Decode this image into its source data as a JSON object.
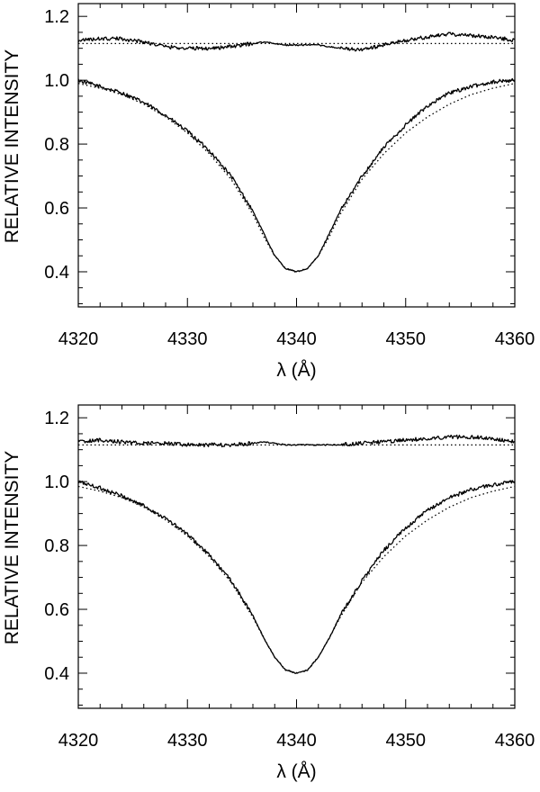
{
  "chart_data": [
    {
      "type": "line",
      "title": "",
      "xlabel": "λ (Å)",
      "ylabel": "RELATIVE INTENSITY",
      "xlim": [
        4320,
        4360
      ],
      "ylim": [
        0.29,
        1.24
      ],
      "grid": false,
      "x_ticks": [
        4320,
        4330,
        4340,
        4350,
        4360
      ],
      "x_tick_labels": [
        "4320",
        "4330",
        "4340",
        "4350",
        "4360"
      ],
      "y_ticks": [
        0.4,
        0.6,
        0.8,
        1.0,
        1.2
      ],
      "y_tick_labels": [
        "0.4",
        "0.6",
        "0.8",
        "1.0",
        "1.2"
      ],
      "series": [
        {
          "style": "solid",
          "x": [
            4320,
            4322,
            4324,
            4326,
            4328,
            4330,
            4332,
            4334,
            4336,
            4337,
            4338,
            4339,
            4340,
            4341,
            4342,
            4343,
            4344,
            4346,
            4348,
            4350,
            4352,
            4354,
            4356,
            4358,
            4360
          ],
          "y": [
            1.0,
            0.98,
            0.96,
            0.93,
            0.89,
            0.84,
            0.78,
            0.7,
            0.59,
            0.52,
            0.45,
            0.41,
            0.4,
            0.41,
            0.45,
            0.52,
            0.59,
            0.7,
            0.79,
            0.86,
            0.92,
            0.96,
            0.98,
            0.995,
            1.0
          ]
        },
        {
          "style": "dotted",
          "x": [
            4320,
            4322,
            4324,
            4326,
            4328,
            4330,
            4332,
            4334,
            4336,
            4337,
            4338,
            4339,
            4340,
            4341,
            4342,
            4343,
            4344,
            4346,
            4348,
            4350,
            4352,
            4354,
            4356,
            4358,
            4360
          ],
          "y": [
            0.99,
            0.975,
            0.955,
            0.925,
            0.885,
            0.835,
            0.77,
            0.69,
            0.58,
            0.51,
            0.45,
            0.41,
            0.4,
            0.41,
            0.45,
            0.51,
            0.58,
            0.69,
            0.77,
            0.835,
            0.885,
            0.925,
            0.955,
            0.975,
            0.99
          ]
        },
        {
          "style": "solid",
          "x": [
            4320,
            4322,
            4324,
            4326,
            4328,
            4330,
            4332,
            4334,
            4336,
            4337,
            4338,
            4339,
            4340,
            4342,
            4344,
            4346,
            4348,
            4350,
            4352,
            4354,
            4356,
            4358,
            4360
          ],
          "y": [
            1.125,
            1.13,
            1.13,
            1.12,
            1.105,
            1.1,
            1.1,
            1.105,
            1.115,
            1.12,
            1.115,
            1.11,
            1.11,
            1.11,
            1.1,
            1.095,
            1.11,
            1.125,
            1.135,
            1.145,
            1.14,
            1.135,
            1.125
          ]
        },
        {
          "style": "dotted",
          "x": [
            4320,
            4360
          ],
          "y": [
            1.115,
            1.115
          ]
        }
      ]
    },
    {
      "type": "line",
      "title": "",
      "xlabel": "λ (Å)",
      "ylabel": "RELATIVE INTENSITY",
      "xlim": [
        4320,
        4360
      ],
      "ylim": [
        0.29,
        1.24
      ],
      "grid": false,
      "x_ticks": [
        4320,
        4330,
        4340,
        4350,
        4360
      ],
      "x_tick_labels": [
        "4320",
        "4330",
        "4340",
        "4350",
        "4360"
      ],
      "y_ticks": [
        0.4,
        0.6,
        0.8,
        1.0,
        1.2
      ],
      "y_tick_labels": [
        "0.4",
        "0.6",
        "0.8",
        "1.0",
        "1.2"
      ],
      "series": [
        {
          "style": "solid",
          "x": [
            4320,
            4322,
            4324,
            4326,
            4328,
            4330,
            4332,
            4334,
            4336,
            4337,
            4338,
            4339,
            4340,
            4341,
            4342,
            4343,
            4344,
            4346,
            4348,
            4350,
            4352,
            4354,
            4356,
            4358,
            4360
          ],
          "y": [
            1.0,
            0.98,
            0.955,
            0.925,
            0.885,
            0.835,
            0.77,
            0.69,
            0.58,
            0.51,
            0.45,
            0.41,
            0.4,
            0.41,
            0.45,
            0.51,
            0.58,
            0.69,
            0.785,
            0.855,
            0.91,
            0.95,
            0.975,
            0.99,
            1.0
          ]
        },
        {
          "style": "dotted",
          "x": [
            4320,
            4322,
            4324,
            4326,
            4328,
            4330,
            4332,
            4334,
            4336,
            4337,
            4338,
            4339,
            4340,
            4341,
            4342,
            4343,
            4344,
            4346,
            4348,
            4350,
            4352,
            4354,
            4356,
            4358,
            4360
          ],
          "y": [
            0.985,
            0.97,
            0.95,
            0.92,
            0.88,
            0.83,
            0.765,
            0.685,
            0.575,
            0.51,
            0.45,
            0.41,
            0.4,
            0.41,
            0.45,
            0.51,
            0.575,
            0.685,
            0.765,
            0.83,
            0.88,
            0.92,
            0.95,
            0.97,
            0.985
          ]
        },
        {
          "style": "solid",
          "x": [
            4320,
            4322,
            4324,
            4326,
            4328,
            4330,
            4332,
            4334,
            4336,
            4337,
            4338,
            4339,
            4340,
            4342,
            4344,
            4346,
            4348,
            4350,
            4352,
            4354,
            4356,
            4358,
            4360
          ],
          "y": [
            1.125,
            1.13,
            1.125,
            1.12,
            1.12,
            1.115,
            1.115,
            1.115,
            1.12,
            1.125,
            1.12,
            1.115,
            1.115,
            1.115,
            1.115,
            1.12,
            1.125,
            1.13,
            1.135,
            1.14,
            1.14,
            1.135,
            1.125
          ]
        },
        {
          "style": "dotted",
          "x": [
            4320,
            4360
          ],
          "y": [
            1.115,
            1.115
          ]
        }
      ]
    }
  ]
}
